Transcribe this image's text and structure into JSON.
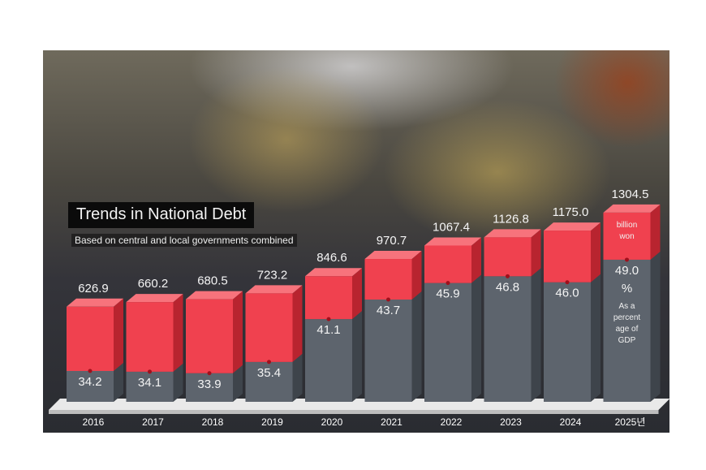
{
  "chart_data": {
    "type": "bar",
    "title": "Trends in National Debt",
    "subtitle": "Based on central and local governments combined",
    "categories": [
      "2016",
      "2017",
      "2018",
      "2019",
      "2020",
      "2021",
      "2022",
      "2023",
      "2024",
      "2025년"
    ],
    "series": [
      {
        "name": "billion won",
        "values": [
          626.9,
          660.2,
          680.5,
          723.2,
          846.6,
          970.7,
          1067.4,
          1126.8,
          1175.0,
          1304.5
        ],
        "labels": [
          "626.9",
          "660.2",
          "680.5",
          "723.2",
          "846.6",
          "970.7",
          "1067.4",
          "1126.8",
          "1175.0",
          "1304.5"
        ]
      },
      {
        "name": "% As a percentage of GDP",
        "values": [
          34.2,
          34.1,
          33.9,
          35.4,
          41.1,
          43.7,
          45.9,
          46.8,
          46.0,
          49.0
        ],
        "labels": [
          "34.2",
          "34.1",
          "33.9",
          "35.4",
          "41.1",
          "43.7",
          "45.9",
          "46.8",
          "46.0",
          "49.0"
        ]
      }
    ],
    "annotations": {
      "unit_debt": [
        "billion",
        "won"
      ],
      "unit_pct": "%",
      "pct_note": [
        "As a",
        "percent",
        "age of",
        "GDP"
      ]
    },
    "colors": {
      "debt": "#f0414f",
      "gdp_pct": "#5d646d",
      "marker": "#a0101c"
    },
    "grid": false
  }
}
